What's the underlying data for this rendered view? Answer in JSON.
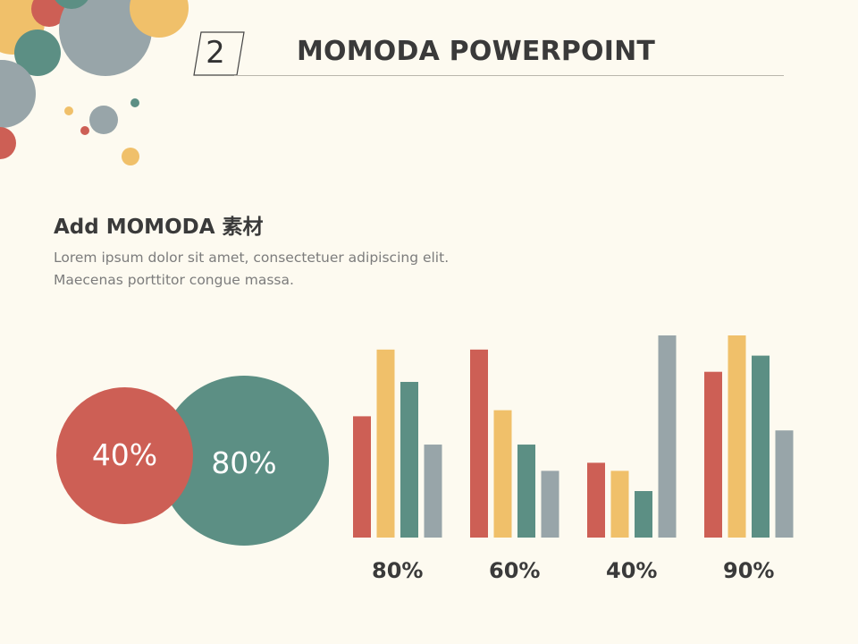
{
  "header": {
    "section_number": "2",
    "title": "MOMODA POWERPOINT"
  },
  "content": {
    "heading": "Add MOMODA 素材",
    "body_lines": [
      "Lorem ipsum dolor sit amet, consectetuer adipiscing elit.",
      "Maecenas porttitor congue massa."
    ]
  },
  "circles": {
    "red_label": "40%",
    "green_label": "80%"
  },
  "colors": {
    "red": "#cd5f55",
    "yellow": "#f0c06a",
    "green": "#5c8f84",
    "gray": "#98a5a9",
    "background": "#fdfaf0"
  },
  "chart_data": {
    "type": "bar",
    "categories": [
      "80%",
      "60%",
      "40%",
      "90%"
    ],
    "series": [
      {
        "values": [
          60,
          93,
          37,
          82
        ]
      },
      {
        "values": [
          93,
          63,
          33,
          100
        ]
      },
      {
        "values": [
          77,
          46,
          23,
          90
        ]
      },
      {
        "values": [
          46,
          33,
          100,
          53
        ]
      }
    ],
    "ylim": [
      0,
      100
    ],
    "grid": false,
    "legend": "none"
  }
}
